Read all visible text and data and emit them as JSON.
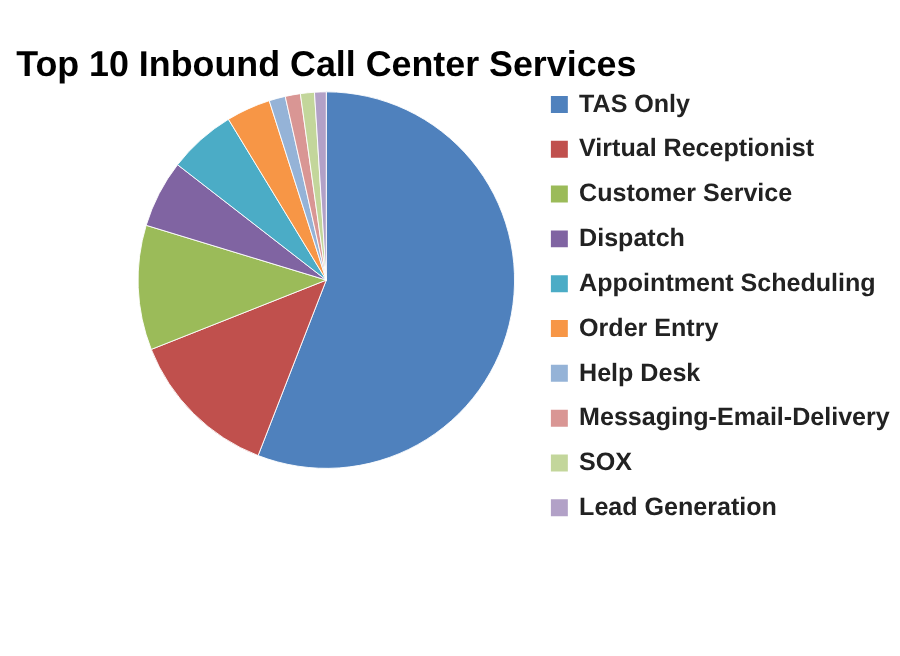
{
  "chart_data": {
    "type": "pie",
    "title": "Top 10 Inbound Call Center Services",
    "categories": [
      "TAS Only",
      "Virtual Receptionist",
      "Customer Service",
      "Dispatch",
      "Appointment Scheduling",
      "Order Entry",
      "Help Desk",
      "Messaging-Email-Delivery",
      "SOX",
      "Lead Generation"
    ],
    "values": [
      55.9,
      13.1,
      10.7,
      5.8,
      5.8,
      3.8,
      1.4,
      1.3,
      1.2,
      1.0
    ],
    "colors": [
      "#4f81bd",
      "#c0504d",
      "#9bbb59",
      "#8064a2",
      "#4bacc6",
      "#f79646",
      "#95b3d7",
      "#d99694",
      "#c3d69b",
      "#b2a1c7"
    ],
    "legend": "right"
  }
}
